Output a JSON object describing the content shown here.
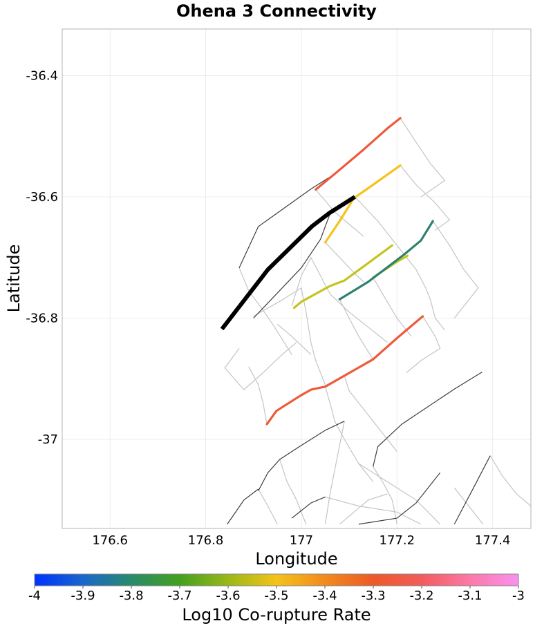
{
  "title": "Ohena 3 Connectivity",
  "xlabel": "Longitude",
  "ylabel": "Latitude",
  "xlim": [
    176.5,
    177.48
  ],
  "ylim": [
    -37.147,
    -36.323
  ],
  "x_ticks": [
    176.6,
    176.8,
    177,
    177.2,
    177.4
  ],
  "x_tick_labels": [
    "176.6",
    "176.8",
    "177",
    "177.2",
    "177.4"
  ],
  "y_ticks": [
    -36.4,
    -36.6,
    -36.8,
    -37
  ],
  "y_tick_labels": [
    "-36.4",
    "-36.6",
    "-36.8",
    "-37"
  ],
  "grid": true,
  "colorbar": {
    "label": "Log10 Co-rupture Rate",
    "min": -4,
    "max": -3,
    "ticks": [
      "-4",
      "-3.9",
      "-3.8",
      "-3.7",
      "-3.6",
      "-3.5",
      "-3.4",
      "-3.3",
      "-3.2",
      "-3.1",
      "-3"
    ],
    "stops": [
      "#0033ff",
      "#1a66cc",
      "#2a8a6a",
      "#44a020",
      "#9ab818",
      "#f5c31a",
      "#f28a1e",
      "#ec5a28",
      "#f25c5c",
      "#fb7aa8",
      "#f990ef"
    ]
  },
  "chart_data": {
    "type": "map",
    "source_fault": {
      "name": "Ohena 3",
      "color": "#000000",
      "path": [
        [
          176.834,
          -36.818
        ],
        [
          176.93,
          -36.72
        ],
        [
          177.023,
          -36.648
        ],
        [
          177.058,
          -36.627
        ],
        [
          177.112,
          -36.6
        ]
      ]
    },
    "connected_faults": [
      {
        "log10_rate": -3.22,
        "color": "#ee5a3a",
        "path": [
          [
            177.03,
            -36.588
          ],
          [
            177.07,
            -36.562
          ],
          [
            177.13,
            -36.522
          ],
          [
            177.18,
            -36.487
          ],
          [
            177.207,
            -36.47
          ]
        ]
      },
      {
        "log10_rate": -3.46,
        "color": "#f5c31a",
        "path": [
          [
            177.05,
            -36.675
          ],
          [
            177.08,
            -36.64
          ],
          [
            177.11,
            -36.602
          ],
          [
            177.15,
            -36.58
          ],
          [
            177.207,
            -36.548
          ]
        ]
      },
      {
        "log10_rate": -3.63,
        "color": "#c4c420",
        "path": [
          [
            176.985,
            -36.783
          ],
          [
            177.0,
            -36.773
          ],
          [
            177.06,
            -36.747
          ],
          [
            177.09,
            -36.738
          ],
          [
            177.135,
            -36.712
          ],
          [
            177.19,
            -36.68
          ]
        ]
      },
      {
        "log10_rate": -3.63,
        "color": "#c4c420",
        "path": [
          [
            177.15,
            -36.733
          ],
          [
            177.2,
            -36.707
          ],
          [
            177.222,
            -36.697
          ]
        ]
      },
      {
        "log10_rate": -3.85,
        "color": "#2e8070",
        "path": [
          [
            177.08,
            -36.769
          ],
          [
            177.14,
            -36.74
          ],
          [
            177.215,
            -36.695
          ],
          [
            177.25,
            -36.672
          ],
          [
            177.275,
            -36.64
          ]
        ]
      },
      {
        "log10_rate": -3.25,
        "color": "#ee5a3a",
        "path": [
          [
            176.928,
            -36.975
          ],
          [
            176.948,
            -36.953
          ],
          [
            176.998,
            -36.928
          ],
          [
            177.02,
            -36.918
          ],
          [
            177.05,
            -36.913
          ],
          [
            177.09,
            -36.895
          ],
          [
            177.15,
            -36.868
          ],
          [
            177.2,
            -36.833
          ],
          [
            177.254,
            -36.797
          ]
        ]
      }
    ],
    "background_traces": [
      [
        [
          176.87,
          -36.717
        ],
        [
          176.91,
          -36.649
        ],
        [
          177.02,
          -36.587
        ],
        [
          177.07,
          -36.562
        ]
      ],
      [
        [
          176.9,
          -36.8
        ],
        [
          177.0,
          -36.717
        ],
        [
          177.04,
          -36.67
        ],
        [
          177.06,
          -36.628
        ]
      ],
      [
        [
          176.91,
          -37.085
        ],
        [
          176.93,
          -37.055
        ],
        [
          176.955,
          -37.033
        ],
        [
          177.0,
          -37.01
        ],
        [
          177.05,
          -36.985
        ],
        [
          177.09,
          -36.97
        ]
      ],
      [
        [
          177.15,
          -37.045
        ],
        [
          177.16,
          -37.012
        ],
        [
          177.21,
          -36.975
        ],
        [
          177.32,
          -36.917
        ],
        [
          177.378,
          -36.889
        ]
      ],
      [
        [
          176.845,
          -37.14
        ],
        [
          176.88,
          -37.1
        ],
        [
          176.91,
          -37.082
        ]
      ],
      [
        [
          176.98,
          -37.13
        ],
        [
          177.02,
          -37.105
        ],
        [
          177.05,
          -37.095
        ]
      ],
      [
        [
          177.12,
          -37.14
        ],
        [
          177.2,
          -37.13
        ],
        [
          177.24,
          -37.105
        ],
        [
          177.29,
          -37.055
        ]
      ],
      [
        [
          177.32,
          -37.14
        ],
        [
          177.36,
          -37.08
        ],
        [
          177.395,
          -37.027
        ]
      ]
    ],
    "background_outlines": [
      [
        [
          176.87,
          -36.717
        ],
        [
          176.89,
          -36.755
        ],
        [
          176.92,
          -36.787
        ],
        [
          176.94,
          -36.81
        ],
        [
          176.96,
          -36.835
        ],
        [
          176.98,
          -36.86
        ]
      ],
      [
        [
          176.87,
          -36.85
        ],
        [
          176.84,
          -36.882
        ],
        [
          176.88,
          -36.918
        ],
        [
          176.92,
          -36.89
        ],
        [
          176.96,
          -36.86
        ],
        [
          176.99,
          -36.84
        ]
      ],
      [
        [
          176.9,
          -36.797
        ],
        [
          176.96,
          -36.77
        ],
        [
          177.0,
          -36.75
        ]
      ],
      [
        [
          177.0,
          -36.75
        ],
        [
          177.01,
          -36.79
        ],
        [
          177.02,
          -36.84
        ],
        [
          177.03,
          -36.87
        ],
        [
          177.05,
          -36.91
        ]
      ],
      [
        [
          176.95,
          -36.81
        ],
        [
          176.98,
          -36.83
        ],
        [
          177.02,
          -36.86
        ]
      ],
      [
        [
          177.03,
          -36.588
        ],
        [
          177.07,
          -36.625
        ],
        [
          177.1,
          -36.645
        ],
        [
          177.13,
          -36.665
        ]
      ],
      [
        [
          177.207,
          -36.47
        ],
        [
          177.24,
          -36.51
        ],
        [
          177.27,
          -36.545
        ],
        [
          177.3,
          -36.573
        ],
        [
          177.25,
          -36.6
        ]
      ],
      [
        [
          177.207,
          -36.548
        ],
        [
          177.24,
          -36.58
        ],
        [
          177.28,
          -36.61
        ],
        [
          177.31,
          -36.638
        ],
        [
          177.28,
          -36.655
        ]
      ],
      [
        [
          177.05,
          -36.675
        ],
        [
          177.08,
          -36.7
        ],
        [
          177.11,
          -36.725
        ],
        [
          177.13,
          -36.74
        ]
      ],
      [
        [
          177.112,
          -36.6
        ],
        [
          177.16,
          -36.64
        ],
        [
          177.2,
          -36.68
        ]
      ],
      [
        [
          177.2,
          -36.68
        ],
        [
          177.24,
          -36.72
        ],
        [
          177.26,
          -36.75
        ],
        [
          177.27,
          -36.77
        ],
        [
          177.28,
          -36.8
        ],
        [
          177.3,
          -36.82
        ]
      ],
      [
        [
          177.275,
          -36.64
        ],
        [
          177.31,
          -36.68
        ],
        [
          177.34,
          -36.72
        ],
        [
          177.37,
          -36.75
        ],
        [
          177.35,
          -36.77
        ],
        [
          177.32,
          -36.8
        ]
      ],
      [
        [
          177.06,
          -36.76
        ],
        [
          177.1,
          -36.79
        ],
        [
          177.14,
          -36.815
        ],
        [
          177.18,
          -36.84
        ]
      ],
      [
        [
          177.08,
          -36.769
        ],
        [
          177.1,
          -36.8
        ],
        [
          177.12,
          -36.83
        ],
        [
          177.15,
          -36.868
        ]
      ],
      [
        [
          177.15,
          -36.733
        ],
        [
          177.17,
          -36.76
        ],
        [
          177.2,
          -36.8
        ],
        [
          177.23,
          -36.83
        ]
      ],
      [
        [
          177.254,
          -36.797
        ],
        [
          177.28,
          -36.83
        ],
        [
          177.29,
          -36.85
        ],
        [
          177.25,
          -36.87
        ],
        [
          177.22,
          -36.89
        ]
      ],
      [
        [
          176.928,
          -36.975
        ],
        [
          176.92,
          -36.94
        ],
        [
          176.91,
          -36.91
        ],
        [
          176.89,
          -36.88
        ]
      ],
      [
        [
          177.09,
          -36.895
        ],
        [
          177.1,
          -36.92
        ],
        [
          177.13,
          -36.95
        ],
        [
          177.16,
          -36.98
        ],
        [
          177.2,
          -37.02
        ]
      ],
      [
        [
          177.05,
          -36.913
        ],
        [
          177.06,
          -36.94
        ],
        [
          177.07,
          -36.97
        ],
        [
          177.09,
          -37.0
        ],
        [
          177.12,
          -37.04
        ],
        [
          177.15,
          -37.07
        ]
      ],
      [
        [
          176.91,
          -37.082
        ],
        [
          176.93,
          -37.11
        ],
        [
          176.95,
          -37.14
        ]
      ],
      [
        [
          176.955,
          -37.033
        ],
        [
          176.97,
          -37.07
        ],
        [
          176.99,
          -37.1
        ],
        [
          177.01,
          -37.14
        ]
      ],
      [
        [
          177.09,
          -36.97
        ],
        [
          177.08,
          -37.01
        ],
        [
          177.07,
          -37.05
        ],
        [
          177.06,
          -37.09
        ],
        [
          177.05,
          -37.14
        ]
      ],
      [
        [
          177.12,
          -37.04
        ],
        [
          177.18,
          -37.07
        ],
        [
          177.24,
          -37.1
        ],
        [
          177.29,
          -37.14
        ]
      ],
      [
        [
          177.15,
          -37.045
        ],
        [
          177.17,
          -37.07
        ],
        [
          177.19,
          -37.1
        ],
        [
          177.2,
          -37.14
        ]
      ],
      [
        [
          177.08,
          -37.14
        ],
        [
          177.14,
          -37.1
        ],
        [
          177.18,
          -37.09
        ]
      ],
      [
        [
          177.05,
          -37.095
        ],
        [
          177.12,
          -37.11
        ],
        [
          177.2,
          -37.12
        ],
        [
          177.25,
          -37.14
        ]
      ],
      [
        [
          177.395,
          -37.027
        ],
        [
          177.42,
          -37.06
        ],
        [
          177.45,
          -37.09
        ],
        [
          177.48,
          -37.11
        ]
      ],
      [
        [
          177.32,
          -37.08
        ],
        [
          177.35,
          -37.11
        ],
        [
          177.38,
          -37.14
        ]
      ],
      [
        [
          177.06,
          -36.76
        ],
        [
          177.04,
          -36.73
        ],
        [
          177.02,
          -36.7
        ],
        [
          177.0,
          -36.73
        ],
        [
          176.98,
          -36.78
        ]
      ]
    ]
  }
}
